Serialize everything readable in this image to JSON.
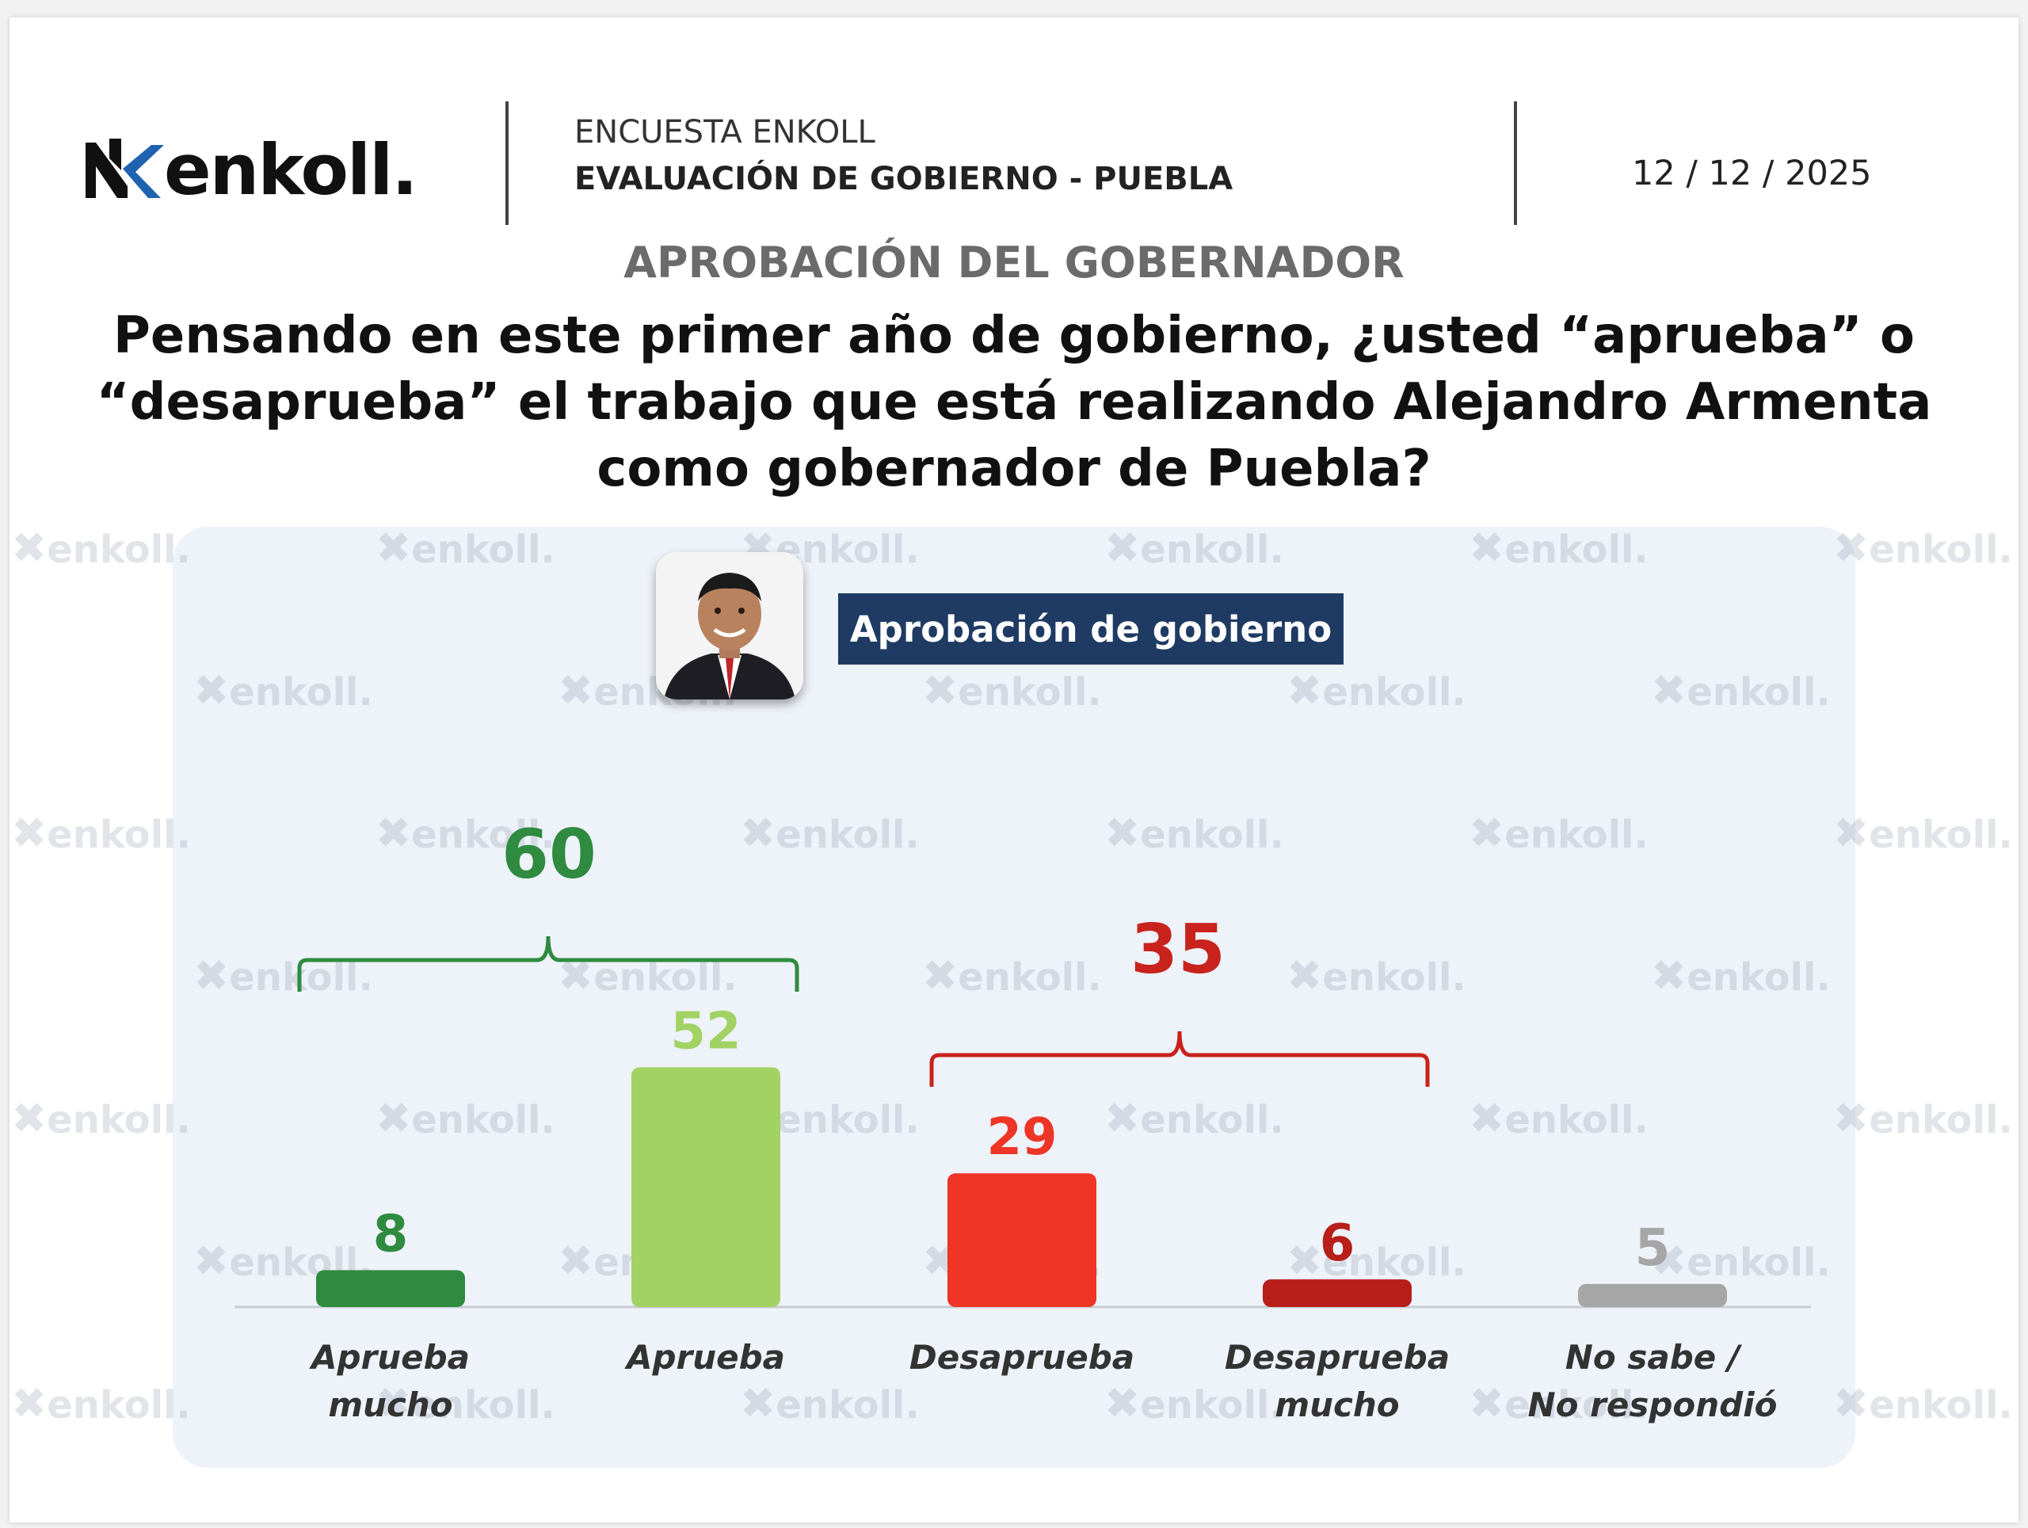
{
  "header": {
    "logo_text": "enkoll.",
    "survey_label": "ENCUESTA ENKOLL",
    "survey_title": "EVALUACIÓN DE GOBIERNO - PUEBLA",
    "date": "12 / 12 / 2025"
  },
  "section_title": "APROBACIÓN DEL GOBERNADOR",
  "question": "Pensando en este primer año de gobierno, ¿usted “aprueba” o “desaprueba” el trabajo que está realizando Alejandro Armenta como gobernador de Puebla?",
  "watermark_text": "enkoll.",
  "colors": {
    "navy": "#1f3b63",
    "dark_green": "#2e8b3f",
    "light_green": "#a2d264",
    "red": "#ee3526",
    "dark_red": "#b81e1a",
    "gray": "#a6a6a6",
    "green_bracket": "#2e8b3f",
    "red_bracket": "#c8231c"
  },
  "chart_data": {
    "type": "bar",
    "title": "Aprobación de gobierno",
    "categories": [
      "Aprueba\nmucho",
      "Aprueba",
      "Desaprueba",
      "Desaprueba\nmucho",
      "No sabe /\nNo respondió"
    ],
    "values": [
      8,
      52,
      29,
      6,
      5
    ],
    "value_labels": [
      "8",
      "52",
      "29",
      "6",
      "5"
    ],
    "bar_colors": [
      "#2e8b3f",
      "#a2d264",
      "#ee3526",
      "#b81e1a",
      "#a6a6a6"
    ],
    "groups": [
      {
        "label": "60",
        "value": 60,
        "from": 0,
        "to": 1,
        "color": "#2e8b3f"
      },
      {
        "label": "35",
        "value": 35,
        "from": 2,
        "to": 3,
        "color": "#c8231c"
      }
    ],
    "ylim": [
      0,
      60
    ],
    "grid": false,
    "legend": "none"
  }
}
